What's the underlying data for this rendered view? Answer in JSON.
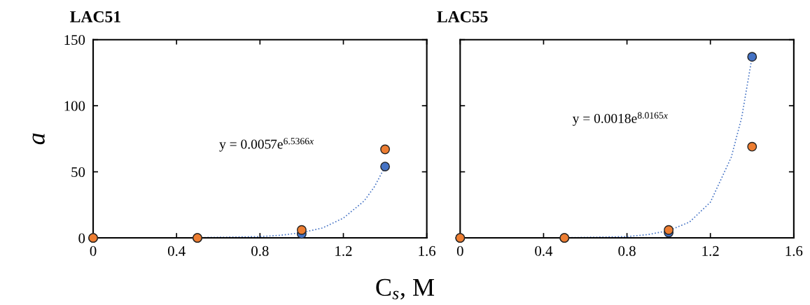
{
  "chart_data": [
    {
      "type": "scatter",
      "title": "LAC51",
      "ylabel": "a",
      "xlabel": "C$_{s}$, M",
      "xlim": [
        0,
        1.6
      ],
      "xticks": [
        0,
        0.4,
        0.8,
        1.2,
        1.6
      ],
      "ylim": [
        0,
        150
      ],
      "yticks": [
        0,
        50,
        100,
        150
      ],
      "grid": false,
      "legend": false,
      "marker": "circle",
      "annotations": [
        "y = 0.0057e$^{6.5366x}$"
      ],
      "series": [
        {
          "type": "line",
          "color": "#4472c4",
          "line_style": "dotted",
          "marker": "none",
          "x": [
            0,
            0.5,
            0.8,
            0.9,
            1.0,
            1.1,
            1.2,
            1.3,
            1.35,
            1.4
          ],
          "values": [
            0,
            0.2,
            1,
            2,
            4,
            7.5,
            15,
            28,
            39,
            54
          ]
        },
        {
          "color": "#4472c4",
          "x": [
            0,
            0.5,
            1.0,
            1.4
          ],
          "values": [
            0,
            0,
            3,
            54
          ]
        },
        {
          "color": "#ed7d31",
          "x": [
            0,
            0.5,
            1.0,
            1.4
          ],
          "values": [
            0,
            0,
            6,
            67
          ]
        }
      ]
    },
    {
      "type": "scatter",
      "title": "LAC55",
      "xlim": [
        0,
        1.6
      ],
      "xticks": [
        0,
        0.4,
        0.8,
        1.2,
        1.6
      ],
      "ylim": [
        0,
        150
      ],
      "yticks": [
        0,
        50,
        100,
        150
      ],
      "tick_labels": "x",
      "grid": false,
      "legend": false,
      "marker": "circle",
      "annotations": [
        "y = 0.0018e$^{8.0165x}$"
      ],
      "series": [
        {
          "type": "line",
          "color": "#4472c4",
          "line_style": "dotted",
          "marker": "none",
          "x": [
            0,
            0.5,
            0.8,
            0.9,
            1.0,
            1.1,
            1.2,
            1.3,
            1.35,
            1.4
          ],
          "values": [
            0,
            0.1,
            1,
            2.5,
            5.5,
            12,
            27,
            61,
            91,
            137
          ]
        },
        {
          "color": "#4472c4",
          "x": [
            0,
            0.5,
            1.0,
            1.4
          ],
          "values": [
            0,
            0,
            4,
            137
          ]
        },
        {
          "color": "#ed7d31",
          "x": [
            0,
            0.5,
            1.0,
            1.4
          ],
          "values": [
            0,
            0,
            6,
            69
          ]
        }
      ]
    }
  ]
}
